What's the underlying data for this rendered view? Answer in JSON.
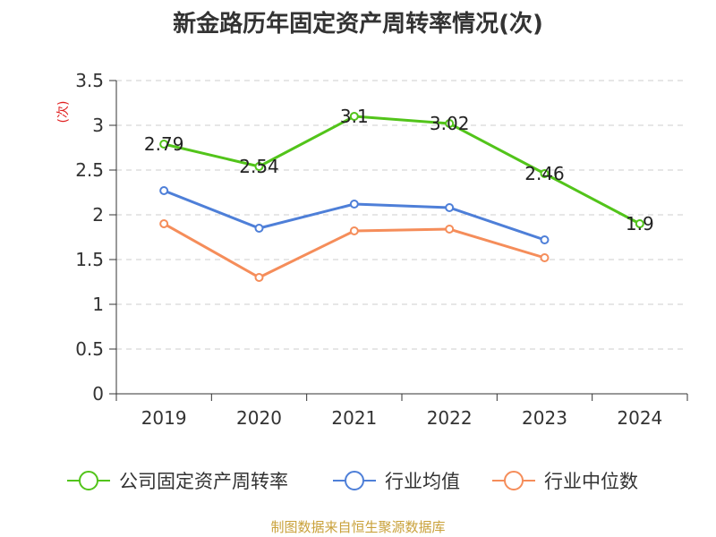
{
  "chart_data": {
    "type": "line",
    "title": "新金路历年固定资产周转率情况(次)",
    "ylabel": "(次)",
    "xlabel": "",
    "categories": [
      "2019",
      "2020",
      "2021",
      "2022",
      "2023",
      "2024"
    ],
    "ylim": [
      0,
      3.5
    ],
    "yticks": [
      0,
      0.5,
      1,
      1.5,
      2,
      2.5,
      3,
      3.5
    ],
    "ytick_labels": [
      "0",
      "0.5",
      "1",
      "1.5",
      "2",
      "2.5",
      "3",
      "3.5"
    ],
    "grid": true,
    "legend_position": "bottom",
    "series": [
      {
        "name": "公司固定资产周转率",
        "color": "#52c41a",
        "values": [
          2.79,
          2.54,
          3.1,
          3.02,
          2.46,
          1.9
        ],
        "labels": [
          "2.79",
          "2.54",
          "3.1",
          "3.02",
          "2.46",
          "1.9"
        ]
      },
      {
        "name": "行业均值",
        "color": "#4e7fd8",
        "values": [
          2.27,
          1.85,
          2.12,
          2.08,
          1.72,
          null
        ]
      },
      {
        "name": "行业中位数",
        "color": "#f58d5a",
        "values": [
          1.9,
          1.3,
          1.82,
          1.84,
          1.52,
          null
        ]
      }
    ]
  },
  "footer": "制图数据来自恒生聚源数据库"
}
